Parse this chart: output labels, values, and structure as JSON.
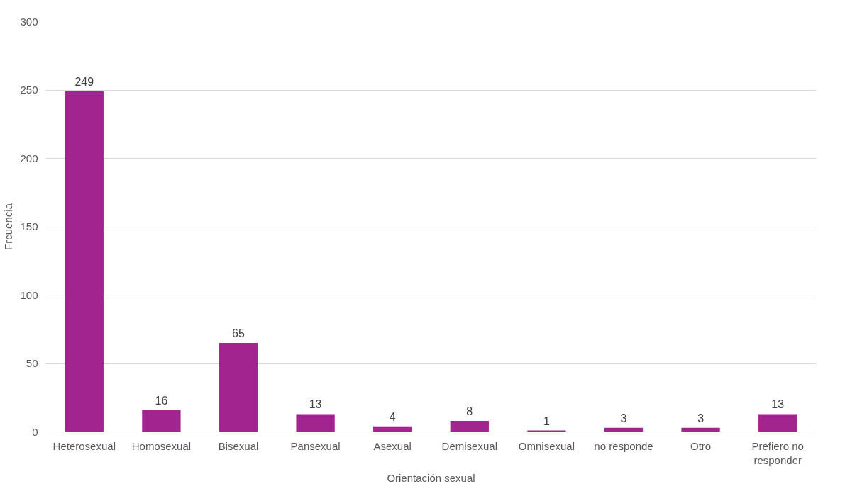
{
  "chart_data": {
    "type": "bar",
    "xlabel": "Orientación sexual",
    "ylabel": "Frcuencia",
    "categories": [
      "Heterosexual",
      "Homosexual",
      "Bisexual",
      "Pansexual",
      "Asexual",
      "Demisexual",
      "Omnisexual",
      "no responde",
      "Otro",
      "Prefiero no responder"
    ],
    "values": [
      249,
      16,
      65,
      13,
      4,
      8,
      1,
      3,
      3,
      13
    ],
    "color": "#a2258f",
    "ylim": [
      0,
      300
    ],
    "yticks": [
      0,
      50,
      100,
      150,
      200,
      250,
      300
    ],
    "grid": "y",
    "data_labels": true
  }
}
